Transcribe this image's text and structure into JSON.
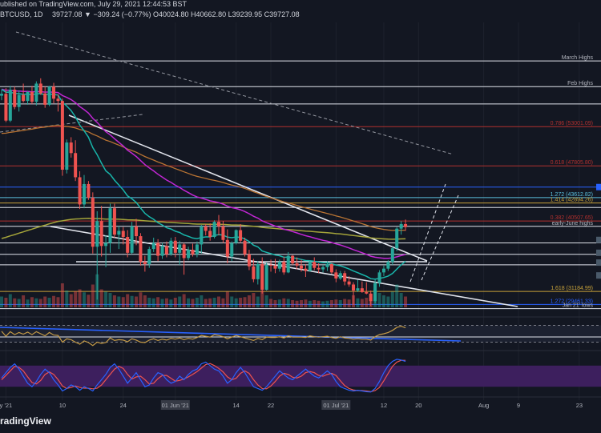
{
  "header": {
    "line1": "ublished on TradingView.com, July 29, 2021 12:44:53 BST",
    "line2_symbol": "BTCUSD, 1D",
    "ohlc": "39727.08 ▼ −309.24 (−0.77%) O40024.80 H40662.80 L39239.95 C39727.08"
  },
  "watermark": "radingView",
  "colors": {
    "bg": "#131722",
    "grid": "#1e222d",
    "up": "#26a69a",
    "down": "#ef5350",
    "white": "#e0e3eb",
    "red_line": "#b2302e",
    "gold": "#c8a23a",
    "blue_line": "#2962ff",
    "cyan_line": "#5bc0de",
    "ema20": "#18b5aa",
    "ema50": "#c026d3",
    "ema100": "#b87333",
    "ema200": "#a3a33a",
    "rsi": "#c49a45",
    "rsi_band": "#ffffff",
    "stoch_k": "#2962ff",
    "stoch_d": "#ef5350",
    "stoch_bg": "#3d1f5e",
    "watermark": "#eef0f4"
  },
  "chart_data": {
    "type": "candlestick",
    "symbol": "BTCUSD",
    "timeframe": "1D",
    "ylim": [
      29500,
      66800
    ],
    "x_tick_labels": [
      {
        "index": 1,
        "label": "y '21"
      },
      {
        "index": 14,
        "label": "10"
      },
      {
        "index": 28,
        "label": "24"
      },
      {
        "index": 40,
        "label": "01 Jun '21"
      },
      {
        "index": 54,
        "label": "14"
      },
      {
        "index": 62,
        "label": "22"
      },
      {
        "index": 77,
        "label": "01 Jul '21"
      },
      {
        "index": 88,
        "label": "12"
      },
      {
        "index": 96,
        "label": "20"
      },
      {
        "index": 111,
        "label": "Aug"
      },
      {
        "index": 119,
        "label": "9"
      },
      {
        "index": 133,
        "label": "23"
      }
    ],
    "candles": [
      [
        57100,
        57900,
        56500,
        57350
      ],
      [
        57350,
        58100,
        53600,
        53800
      ],
      [
        53800,
        58400,
        53600,
        57900
      ],
      [
        57900,
        58300,
        55300,
        55600
      ],
      [
        55600,
        57800,
        55000,
        57200
      ],
      [
        57200,
        58700,
        56200,
        56400
      ],
      [
        56400,
        57700,
        55900,
        57600
      ],
      [
        57600,
        58400,
        56000,
        56300
      ],
      [
        56300,
        59000,
        55800,
        58700
      ],
      [
        58700,
        59400,
        57200,
        57400
      ],
      [
        57400,
        58300,
        55500,
        55900
      ],
      [
        55900,
        58400,
        55700,
        58300
      ],
      [
        58300,
        58800,
        56100,
        56700
      ],
      [
        56700,
        57300,
        55000,
        56400
      ],
      [
        56400,
        56700,
        46500,
        47300
      ],
      [
        47300,
        51300,
        46800,
        50900
      ],
      [
        50900,
        51600,
        48900,
        49500
      ],
      [
        49500,
        51200,
        45800,
        46300
      ],
      [
        46300,
        47100,
        42100,
        42700
      ],
      [
        42700,
        46600,
        42200,
        45400
      ],
      [
        45400,
        45800,
        43300,
        43600
      ],
      [
        43600,
        44300,
        36200,
        37100
      ],
      [
        37100,
        41800,
        30100,
        40500
      ],
      [
        40500,
        42500,
        35800,
        37200
      ],
      [
        37200,
        38600,
        34400,
        37600
      ],
      [
        37600,
        42800,
        36300,
        42200
      ],
      [
        42200,
        42800,
        38300,
        38700
      ],
      [
        38700,
        39900,
        36800,
        39200
      ],
      [
        39200,
        39700,
        37400,
        38400
      ],
      [
        38400,
        39300,
        35700,
        36300
      ],
      [
        36300,
        40400,
        36100,
        39800
      ],
      [
        39800,
        40800,
        37300,
        38500
      ],
      [
        38500,
        38900,
        34600,
        35100
      ],
      [
        35100,
        35900,
        33800,
        34800
      ],
      [
        34800,
        37100,
        34300,
        36800
      ],
      [
        36800,
        38300,
        36400,
        37600
      ],
      [
        37600,
        38100,
        35200,
        35900
      ],
      [
        35900,
        37600,
        35500,
        37200
      ],
      [
        37200,
        37800,
        35700,
        36100
      ],
      [
        36100,
        38300,
        35900,
        37900
      ],
      [
        37900,
        38400,
        35700,
        36300
      ],
      [
        36300,
        37900,
        34700,
        37400
      ],
      [
        37400,
        37600,
        33400,
        35600
      ],
      [
        35600,
        37100,
        35300,
        36700
      ],
      [
        36700,
        37500,
        35800,
        36100
      ],
      [
        36100,
        37800,
        35700,
        37400
      ],
      [
        37400,
        40000,
        36200,
        39800
      ],
      [
        39800,
        40100,
        38600,
        39200
      ],
      [
        39200,
        40200,
        37900,
        38400
      ],
      [
        38400,
        40600,
        38200,
        40400
      ],
      [
        40400,
        41300,
        38600,
        39800
      ],
      [
        39800,
        40500,
        37600,
        38000
      ],
      [
        38000,
        39400,
        34900,
        35800
      ],
      [
        35800,
        37800,
        35200,
        37600
      ],
      [
        37600,
        39400,
        37400,
        39300
      ],
      [
        39300,
        40100,
        37600,
        37900
      ],
      [
        37900,
        38300,
        35800,
        36100
      ],
      [
        36100,
        36700,
        34000,
        34500
      ],
      [
        34500,
        35500,
        32400,
        32800
      ],
      [
        32800,
        35200,
        32100,
        34800
      ],
      [
        34800,
        35700,
        30900,
        31400
      ],
      [
        31400,
        35000,
        31300,
        34700
      ],
      [
        34700,
        35400,
        33800,
        34600
      ],
      [
        34600,
        35500,
        33600,
        34200
      ],
      [
        34200,
        35400,
        33800,
        35100
      ],
      [
        35100,
        35800,
        33400,
        33700
      ],
      [
        33700,
        36400,
        33600,
        35900
      ],
      [
        35900,
        36000,
        34700,
        34900
      ],
      [
        34900,
        35700,
        34100,
        34600
      ],
      [
        34600,
        35400,
        33800,
        34200
      ],
      [
        34200,
        34800,
        33100,
        33900
      ],
      [
        33900,
        35300,
        33800,
        35100
      ],
      [
        35100,
        35700,
        34000,
        34300
      ],
      [
        34300,
        34900,
        33600,
        34100
      ],
      [
        34100,
        34700,
        33700,
        34400
      ],
      [
        34400,
        35200,
        33900,
        34800
      ],
      [
        34800,
        34900,
        33500,
        33700
      ],
      [
        33700,
        34100,
        32400,
        32900
      ],
      [
        32900,
        33900,
        32700,
        33600
      ],
      [
        33600,
        33900,
        32000,
        32500
      ],
      [
        32500,
        33200,
        31800,
        32100
      ],
      [
        32100,
        32400,
        29400,
        31300
      ],
      [
        31300,
        32700,
        31100,
        31600
      ],
      [
        31600,
        32500,
        31000,
        31100
      ],
      [
        31100,
        32400,
        30800,
        30900
      ],
      [
        30900,
        31300,
        29300,
        29900
      ],
      [
        29900,
        32800,
        29600,
        32300
      ],
      [
        32300,
        34000,
        31800,
        33700
      ],
      [
        33700,
        34600,
        33200,
        34200
      ],
      [
        34200,
        35300,
        33900,
        35100
      ],
      [
        35100,
        37100,
        34700,
        36900
      ],
      [
        36900,
        39700,
        36500,
        39500
      ],
      [
        39500,
        40500,
        38700,
        40100
      ],
      [
        40100,
        40700,
        39200,
        39700
      ]
    ],
    "horizontal_levels": [
      {
        "label": "March Highs",
        "value": 61700,
        "color": "#e0e3eb"
      },
      {
        "label": "Feb Highs",
        "value": 58300,
        "color": "#e0e3eb"
      },
      {
        "label": "",
        "value": 56000,
        "color": "#e0e3eb"
      },
      {
        "label": "0.786 (53001.09)",
        "value": 53001,
        "color": "#b2302e"
      },
      {
        "label": "0.618 (47805.80)",
        "value": 47806,
        "color": "#b2302e"
      },
      {
        "label": "",
        "value": 45000,
        "color": "#2962ff"
      },
      {
        "label": "1.272 (43612.82)",
        "value": 43613,
        "color": "#5bc0de"
      },
      {
        "label": "1.414 (42894.26)",
        "value": 42894,
        "color": "#c8a23a"
      },
      {
        "label": "",
        "value": 42300,
        "color": "#e0e3eb"
      },
      {
        "label": "0.382 (40507.65)",
        "value": 40508,
        "color": "#b2302e"
      },
      {
        "label": "early-June highs",
        "value": 39800,
        "color": "#e0e3eb"
      },
      {
        "label": "",
        "value": 37600,
        "color": "#e0e3eb"
      },
      {
        "label": "",
        "value": 36100,
        "color": "#e0e3eb"
      },
      {
        "label": "",
        "value": 34700,
        "color": "#e0e3eb"
      },
      {
        "label": "1.618 (31184.99)",
        "value": 31185,
        "color": "#c8a23a"
      },
      {
        "label": "1.272 (29461.33)",
        "value": 29461,
        "color": "#2962ff"
      },
      {
        "label": "Jan 21' lows",
        "value": 28900,
        "color": "#e0e3eb"
      }
    ],
    "volume": [
      18,
      16,
      22,
      15,
      14,
      20,
      13,
      17,
      15,
      14,
      18,
      16,
      19,
      17,
      40,
      28,
      22,
      27,
      30,
      25,
      21,
      38,
      55,
      30,
      26,
      24,
      20,
      18,
      17,
      22,
      19,
      18,
      25,
      20,
      16,
      15,
      17,
      14,
      15,
      13,
      16,
      18,
      22,
      15,
      14,
      16,
      20,
      14,
      15,
      16,
      18,
      15,
      26,
      18,
      15,
      16,
      17,
      20,
      24,
      18,
      28,
      20,
      14,
      12,
      13,
      15,
      14,
      12,
      11,
      12,
      13,
      11,
      12,
      11,
      10,
      11,
      12,
      13,
      12,
      14,
      13,
      20,
      15,
      14,
      16,
      22,
      30,
      24,
      20,
      18,
      26,
      38,
      24,
      18
    ],
    "rsi": [
      56,
      44,
      55,
      48,
      53,
      49,
      54,
      48,
      55,
      50,
      45,
      53,
      47,
      46,
      30,
      38,
      36,
      30,
      25,
      33,
      29,
      22,
      30,
      27,
      29,
      40,
      34,
      36,
      35,
      31,
      38,
      35,
      30,
      29,
      35,
      38,
      34,
      37,
      35,
      39,
      37,
      40,
      36,
      39,
      37,
      41,
      46,
      44,
      42,
      48,
      46,
      43,
      38,
      42,
      46,
      43,
      40,
      37,
      34,
      39,
      36,
      42,
      41,
      41,
      43,
      40,
      45,
      42,
      42,
      42,
      41,
      45,
      43,
      42,
      43,
      44,
      41,
      39,
      43,
      40,
      39,
      37,
      38,
      37,
      37,
      35,
      43,
      48,
      50,
      53,
      58,
      65,
      68,
      64
    ],
    "stoch_k": [
      45,
      60,
      75,
      85,
      70,
      50,
      30,
      20,
      35,
      55,
      70,
      60,
      40,
      25,
      8,
      15,
      25,
      20,
      10,
      20,
      15,
      8,
      25,
      40,
      55,
      75,
      85,
      70,
      50,
      30,
      45,
      60,
      40,
      20,
      25,
      45,
      60,
      55,
      40,
      30,
      35,
      50,
      40,
      55,
      65,
      70,
      85,
      90,
      80,
      70,
      65,
      50,
      30,
      40,
      60,
      75,
      60,
      40,
      20,
      15,
      10,
      20,
      35,
      50,
      65,
      55,
      45,
      40,
      50,
      60,
      70,
      60,
      50,
      45,
      55,
      65,
      55,
      35,
      20,
      15,
      10,
      8,
      10,
      8,
      6,
      5,
      15,
      35,
      60,
      80,
      92,
      98,
      96,
      92
    ],
    "stoch_d": [
      40,
      52,
      65,
      78,
      75,
      65,
      48,
      32,
      28,
      38,
      55,
      62,
      55,
      40,
      22,
      15,
      18,
      22,
      18,
      16,
      16,
      14,
      16,
      25,
      40,
      55,
      70,
      78,
      72,
      55,
      42,
      48,
      50,
      40,
      28,
      30,
      43,
      52,
      52,
      44,
      36,
      38,
      42,
      48,
      55,
      63,
      73,
      83,
      86,
      80,
      72,
      62,
      48,
      40,
      44,
      58,
      65,
      58,
      40,
      25,
      15,
      14,
      22,
      35,
      50,
      58,
      55,
      47,
      45,
      50,
      60,
      63,
      60,
      52,
      50,
      55,
      58,
      52,
      37,
      23,
      15,
      11,
      9,
      9,
      8,
      6,
      9,
      18,
      37,
      58,
      78,
      90,
      95,
      95
    ]
  }
}
